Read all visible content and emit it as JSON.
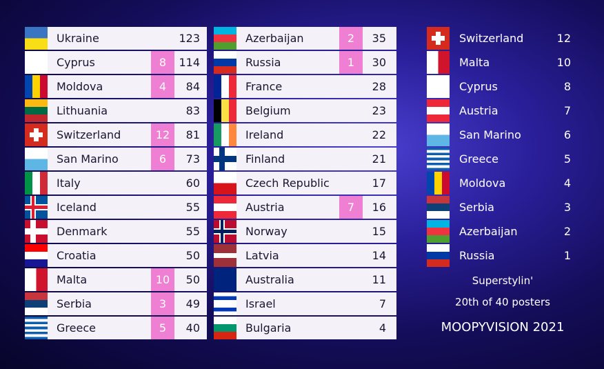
{
  "left_column": [
    {
      "country": "Ukraine",
      "total": 123
    },
    {
      "country": "Cyprus",
      "points": 8,
      "total": 114
    },
    {
      "country": "Moldova",
      "points": 4,
      "total": 84
    },
    {
      "country": "Lithuania",
      "total": 83
    },
    {
      "country": "Switzerland",
      "points": 12,
      "total": 81
    },
    {
      "country": "San Marino",
      "points": 6,
      "total": 73
    },
    {
      "country": "Italy",
      "total": 60
    },
    {
      "country": "Iceland",
      "total": 55
    },
    {
      "country": "Denmark",
      "total": 55
    },
    {
      "country": "Croatia",
      "total": 50
    },
    {
      "country": "Malta",
      "points": 10,
      "total": 50
    },
    {
      "country": "Serbia",
      "points": 3,
      "total": 49
    },
    {
      "country": "Greece",
      "points": 5,
      "total": 40
    }
  ],
  "middle_column": [
    {
      "country": "Azerbaijan",
      "points": 2,
      "total": 35
    },
    {
      "country": "Russia",
      "points": 1,
      "total": 30
    },
    {
      "country": "France",
      "total": 28
    },
    {
      "country": "Belgium",
      "total": 23
    },
    {
      "country": "Ireland",
      "total": 22
    },
    {
      "country": "Finland",
      "total": 21
    },
    {
      "country": "Czech Republic",
      "total": 17
    },
    {
      "country": "Austria",
      "points": 7,
      "total": 16
    },
    {
      "country": "Norway",
      "total": 15
    },
    {
      "country": "Latvia",
      "total": 14
    },
    {
      "country": "Australia",
      "total": 11
    },
    {
      "country": "Israel",
      "total": 7
    },
    {
      "country": "Bulgaria",
      "total": 4
    }
  ],
  "votes": [
    {
      "country": "Switzerland",
      "points": 12
    },
    {
      "country": "Malta",
      "points": 10
    },
    {
      "country": "Cyprus",
      "points": 8
    },
    {
      "country": "Austria",
      "points": 7
    },
    {
      "country": "San Marino",
      "points": 6
    },
    {
      "country": "Greece",
      "points": 5
    },
    {
      "country": "Moldova",
      "points": 4
    },
    {
      "country": "Serbia",
      "points": 3
    },
    {
      "country": "Azerbaijan",
      "points": 2
    },
    {
      "country": "Russia",
      "points": 1
    }
  ],
  "voter": {
    "name": "Superstylin'",
    "placing": "20th of 40 posters"
  },
  "footer": "MOOPYVISION 2021"
}
